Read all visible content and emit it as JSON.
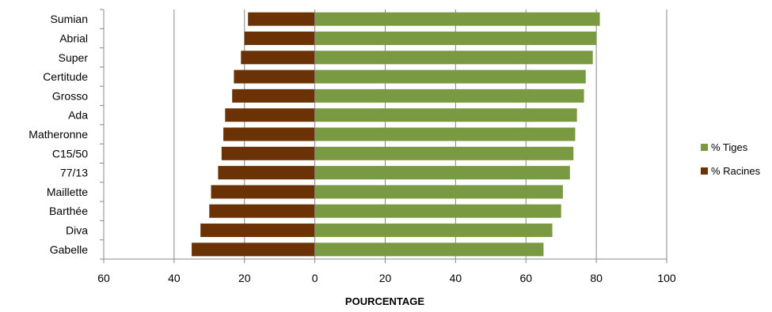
{
  "chart_data": {
    "type": "bar",
    "orientation": "horizontal",
    "categories": [
      "Sumian",
      "Abrial",
      "Super",
      "Certitude",
      "Grosso",
      "Ada",
      "Matheronne",
      "C15/50",
      "77/13",
      "Maillette",
      "Barthée",
      "Diva",
      "Gabelle"
    ],
    "series": [
      {
        "name": "% Tiges",
        "color": "#7a9a42",
        "values": [
          81,
          80,
          79,
          77,
          76.5,
          74.5,
          74,
          73.5,
          72.5,
          70.5,
          70,
          67.5,
          65
        ]
      },
      {
        "name": "% Racines",
        "color": "#6b3206",
        "values": [
          19,
          20,
          21,
          23,
          23.5,
          25.5,
          26,
          26.5,
          27.5,
          29.5,
          30,
          32.5,
          35
        ]
      }
    ],
    "xlabel": "POURCENTAGE",
    "xlim": [
      -60,
      100
    ],
    "xticks": [
      -60,
      -40,
      -20,
      0,
      20,
      40,
      60,
      80,
      100
    ],
    "xtick_labels": [
      "60",
      "40",
      "20",
      "0",
      "20",
      "40",
      "60",
      "80",
      "100"
    ],
    "grid": true,
    "legend_position": "right"
  }
}
